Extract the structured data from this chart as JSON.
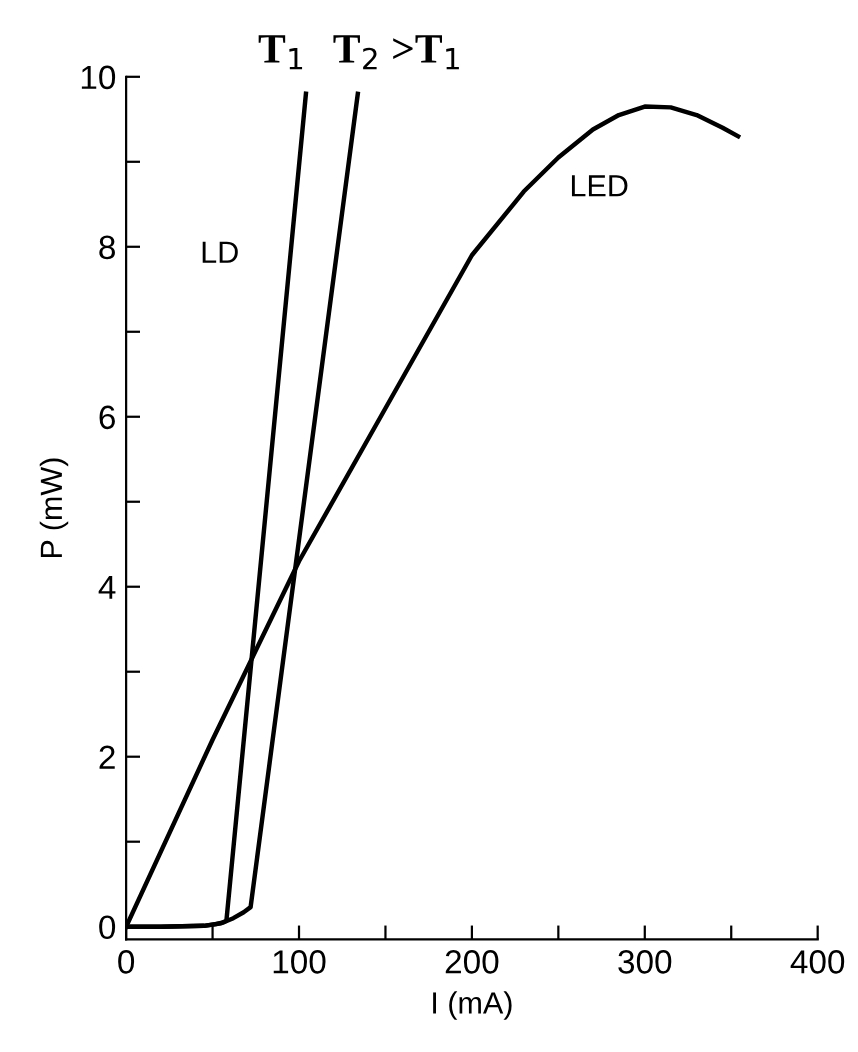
{
  "chart_data": {
    "type": "line",
    "xlabel": "I (mA)",
    "ylabel": "P (mW)",
    "xlim": [
      0,
      400
    ],
    "ylim": [
      -0.15,
      10
    ],
    "xticks": [
      0,
      {
        "value": 50,
        "label": null
      },
      100,
      {
        "value": 150,
        "label": null
      },
      200,
      {
        "value": 250,
        "label": null
      },
      300,
      {
        "value": 350,
        "label": null
      },
      400
    ],
    "yticks": [
      0,
      {
        "value": 1,
        "label": null
      },
      2,
      {
        "value": 3,
        "label": null
      },
      4,
      {
        "value": 5,
        "label": null
      },
      6,
      {
        "value": 7,
        "label": null
      },
      8,
      {
        "value": 9,
        "label": null
      },
      10
    ],
    "grid": false,
    "legend": false,
    "marker": "none",
    "line_style": "solid",
    "series": [
      {
        "name": "T$_{1}$",
        "color": "#000000",
        "x": [
          0,
          20,
          45,
          52,
          56,
          58,
          104
        ],
        "values": [
          0,
          0,
          0.01,
          0.03,
          0.05,
          0.07,
          9.8
        ]
      },
      {
        "name": "T$_{2}$ >T$_{1}$",
        "color": "#000000",
        "x": [
          0,
          20,
          45,
          55,
          62,
          68,
          72,
          134
        ],
        "values": [
          0,
          0,
          0.01,
          0.04,
          0.1,
          0.17,
          0.23,
          9.8
        ]
      },
      {
        "name": "LED",
        "color": "#000000",
        "x": [
          0,
          50,
          100,
          150,
          200,
          230,
          250,
          270,
          285,
          300,
          315,
          330,
          345,
          354
        ],
        "values": [
          0,
          2.2,
          4.3,
          6.1,
          7.9,
          8.65,
          9.05,
          9.38,
          9.55,
          9.65,
          9.64,
          9.55,
          9.4,
          9.3
        ]
      }
    ],
    "annotations": [
      "LD"
    ]
  }
}
